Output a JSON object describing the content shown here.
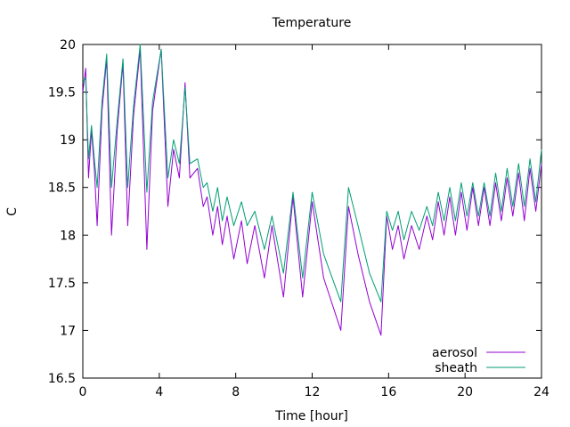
{
  "chart_data": {
    "type": "line",
    "title": "Temperature",
    "xlabel": "Time [hour]",
    "ylabel": "C",
    "xlim": [
      0,
      24
    ],
    "ylim": [
      16.5,
      20
    ],
    "x_ticks": [
      0,
      4,
      8,
      12,
      16,
      20,
      24
    ],
    "y_ticks": [
      16.5,
      17,
      17.5,
      18,
      18.5,
      19,
      19.5,
      20
    ],
    "x_tick_labels": [
      "0",
      "4",
      "8",
      "12",
      "16",
      "20",
      "24"
    ],
    "y_tick_labels": [
      "16.5",
      "17",
      "17.5",
      "18",
      "18.5",
      "19",
      "19.5",
      "20"
    ],
    "grid": false,
    "legend_position": "bottom-right",
    "series": [
      {
        "name": "aerosol",
        "color": "#9400d3",
        "points": [
          [
            0,
            19.5
          ],
          [
            0.15,
            19.75
          ],
          [
            0.3,
            18.6
          ],
          [
            0.45,
            19.1
          ],
          [
            0.6,
            18.7
          ],
          [
            0.75,
            18.1
          ],
          [
            1.0,
            19.3
          ],
          [
            1.25,
            19.85
          ],
          [
            1.5,
            18.0
          ],
          [
            1.8,
            19.1
          ],
          [
            2.1,
            19.8
          ],
          [
            2.35,
            18.1
          ],
          [
            2.65,
            19.25
          ],
          [
            3.0,
            19.95
          ],
          [
            3.35,
            17.85
          ],
          [
            3.65,
            19.3
          ],
          [
            4.1,
            19.95
          ],
          [
            4.45,
            18.3
          ],
          [
            4.75,
            18.9
          ],
          [
            5.05,
            18.6
          ],
          [
            5.35,
            19.6
          ],
          [
            5.6,
            18.6
          ],
          [
            6.0,
            18.7
          ],
          [
            6.3,
            18.3
          ],
          [
            6.5,
            18.4
          ],
          [
            6.8,
            18.0
          ],
          [
            7.05,
            18.3
          ],
          [
            7.3,
            17.9
          ],
          [
            7.55,
            18.2
          ],
          [
            7.9,
            17.75
          ],
          [
            8.3,
            18.15
          ],
          [
            8.6,
            17.7
          ],
          [
            9.0,
            18.1
          ],
          [
            9.5,
            17.55
          ],
          [
            9.9,
            18.1
          ],
          [
            10.5,
            17.35
          ],
          [
            11.0,
            18.4
          ],
          [
            11.5,
            17.35
          ],
          [
            12.0,
            18.35
          ],
          [
            12.6,
            17.55
          ],
          [
            13.5,
            17.0
          ],
          [
            13.9,
            18.3
          ],
          [
            14.4,
            17.8
          ],
          [
            15.0,
            17.3
          ],
          [
            15.6,
            16.95
          ],
          [
            15.9,
            18.2
          ],
          [
            16.2,
            17.85
          ],
          [
            16.5,
            18.1
          ],
          [
            16.8,
            17.75
          ],
          [
            17.2,
            18.1
          ],
          [
            17.6,
            17.85
          ],
          [
            18.0,
            18.2
          ],
          [
            18.3,
            17.95
          ],
          [
            18.6,
            18.35
          ],
          [
            18.9,
            18.0
          ],
          [
            19.2,
            18.4
          ],
          [
            19.5,
            18.0
          ],
          [
            19.8,
            18.45
          ],
          [
            20.1,
            18.05
          ],
          [
            20.4,
            18.5
          ],
          [
            20.7,
            18.1
          ],
          [
            21.0,
            18.5
          ],
          [
            21.3,
            18.1
          ],
          [
            21.6,
            18.55
          ],
          [
            21.9,
            18.15
          ],
          [
            22.2,
            18.6
          ],
          [
            22.5,
            18.2
          ],
          [
            22.8,
            18.65
          ],
          [
            23.1,
            18.15
          ],
          [
            23.4,
            18.7
          ],
          [
            23.7,
            18.25
          ],
          [
            24.0,
            18.75
          ]
        ]
      },
      {
        "name": "sheath",
        "color": "#009e73",
        "points": [
          [
            0,
            19.6
          ],
          [
            0.15,
            19.65
          ],
          [
            0.3,
            18.8
          ],
          [
            0.45,
            19.15
          ],
          [
            0.6,
            18.8
          ],
          [
            0.75,
            18.5
          ],
          [
            1.0,
            19.4
          ],
          [
            1.25,
            19.9
          ],
          [
            1.5,
            18.5
          ],
          [
            1.8,
            19.2
          ],
          [
            2.1,
            19.85
          ],
          [
            2.35,
            18.5
          ],
          [
            2.65,
            19.35
          ],
          [
            3.0,
            20.0
          ],
          [
            3.35,
            18.45
          ],
          [
            3.65,
            19.4
          ],
          [
            4.1,
            19.95
          ],
          [
            4.45,
            18.6
          ],
          [
            4.75,
            19.0
          ],
          [
            5.05,
            18.75
          ],
          [
            5.35,
            19.55
          ],
          [
            5.6,
            18.75
          ],
          [
            6.0,
            18.8
          ],
          [
            6.3,
            18.5
          ],
          [
            6.5,
            18.55
          ],
          [
            6.8,
            18.25
          ],
          [
            7.05,
            18.5
          ],
          [
            7.3,
            18.15
          ],
          [
            7.55,
            18.4
          ],
          [
            7.9,
            18.1
          ],
          [
            8.3,
            18.35
          ],
          [
            8.6,
            18.1
          ],
          [
            9.0,
            18.25
          ],
          [
            9.5,
            17.85
          ],
          [
            9.9,
            18.2
          ],
          [
            10.5,
            17.6
          ],
          [
            11.0,
            18.45
          ],
          [
            11.5,
            17.55
          ],
          [
            12.0,
            18.45
          ],
          [
            12.6,
            17.8
          ],
          [
            13.5,
            17.3
          ],
          [
            13.9,
            18.5
          ],
          [
            14.4,
            18.1
          ],
          [
            15.0,
            17.6
          ],
          [
            15.6,
            17.3
          ],
          [
            15.9,
            18.25
          ],
          [
            16.2,
            18.05
          ],
          [
            16.5,
            18.25
          ],
          [
            16.8,
            17.95
          ],
          [
            17.2,
            18.25
          ],
          [
            17.6,
            18.05
          ],
          [
            18.0,
            18.3
          ],
          [
            18.3,
            18.1
          ],
          [
            18.6,
            18.45
          ],
          [
            18.9,
            18.15
          ],
          [
            19.2,
            18.5
          ],
          [
            19.5,
            18.15
          ],
          [
            19.8,
            18.55
          ],
          [
            20.1,
            18.2
          ],
          [
            20.4,
            18.55
          ],
          [
            20.7,
            18.2
          ],
          [
            21.0,
            18.55
          ],
          [
            21.3,
            18.2
          ],
          [
            21.6,
            18.65
          ],
          [
            21.9,
            18.25
          ],
          [
            22.2,
            18.7
          ],
          [
            22.5,
            18.3
          ],
          [
            22.8,
            18.75
          ],
          [
            23.1,
            18.3
          ],
          [
            23.4,
            18.8
          ],
          [
            23.7,
            18.35
          ],
          [
            24.0,
            18.9
          ]
        ]
      }
    ]
  }
}
